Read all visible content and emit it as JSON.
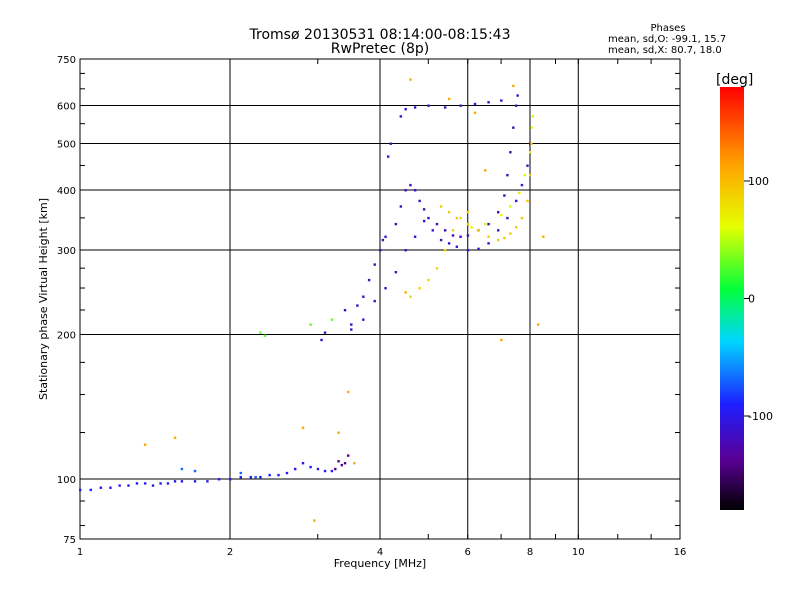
{
  "chart_data": {
    "type": "scatter",
    "title": "Tromsø 20130531 08:14:00-08:15:43",
    "subtitle": "RwPretec (8p)",
    "xlabel": "Frequency [MHz]",
    "ylabel": "Stationary phase Virtual Height [km]",
    "x_scale": "log",
    "y_scale": "log",
    "xlim": [
      1,
      16
    ],
    "ylim": [
      75,
      750
    ],
    "x_ticks": [
      1,
      2,
      4,
      6,
      8,
      10,
      16
    ],
    "x_tick_labels": [
      "1",
      "2",
      "4",
      "6",
      "8",
      "10",
      "16"
    ],
    "y_ticks": [
      75,
      100,
      200,
      300,
      400,
      500,
      600,
      750
    ],
    "y_tick_labels": [
      "75",
      "100",
      "200",
      "300",
      "400",
      "500",
      "600",
      "750"
    ],
    "grid": true,
    "phase_box": {
      "title": "Phases",
      "line_o": "mean, sd,O: -99.1, 15.7",
      "line_x": "mean, sd,X:  80.7, 18.0"
    },
    "colorbar": {
      "label": "[deg]",
      "range": [
        -180,
        180
      ],
      "ticks": [
        100,
        0,
        -100
      ],
      "tick_labels": [
        "100",
        "0",
        "-100"
      ]
    },
    "traces": [
      {
        "phase": -95,
        "points": [
          [
            1.0,
            95
          ],
          [
            1.05,
            95
          ],
          [
            1.1,
            96
          ],
          [
            1.15,
            96
          ],
          [
            1.2,
            97
          ],
          [
            1.25,
            97
          ],
          [
            1.3,
            98
          ],
          [
            1.35,
            98
          ],
          [
            1.4,
            97
          ],
          [
            1.45,
            98
          ],
          [
            1.5,
            98
          ],
          [
            1.55,
            99
          ],
          [
            1.6,
            99
          ],
          [
            1.7,
            99
          ],
          [
            1.8,
            99
          ],
          [
            1.9,
            100
          ],
          [
            2.0,
            100
          ],
          [
            2.1,
            101
          ],
          [
            2.2,
            101
          ],
          [
            2.3,
            101
          ],
          [
            2.4,
            102
          ],
          [
            2.5,
            102
          ],
          [
            2.6,
            103
          ],
          [
            2.7,
            105
          ],
          [
            2.8,
            108
          ],
          [
            2.9,
            106
          ],
          [
            3.0,
            105
          ],
          [
            3.1,
            104
          ],
          [
            3.2,
            104
          ]
        ]
      },
      {
        "phase": -140,
        "points": [
          [
            3.25,
            105
          ],
          [
            3.3,
            109
          ],
          [
            3.35,
            107
          ],
          [
            3.4,
            108
          ],
          [
            3.45,
            112
          ]
        ]
      },
      {
        "phase": -118,
        "points": [
          [
            3.05,
            195
          ],
          [
            3.1,
            202
          ],
          [
            3.4,
            225
          ],
          [
            3.5,
            210
          ],
          [
            3.6,
            230
          ],
          [
            3.7,
            240
          ],
          [
            3.8,
            260
          ],
          [
            3.9,
            280
          ],
          [
            4.0,
            300
          ],
          [
            4.05,
            315
          ],
          [
            4.1,
            320
          ]
        ]
      },
      {
        "phase": -112,
        "points": [
          [
            3.5,
            205
          ],
          [
            3.7,
            215
          ],
          [
            3.9,
            235
          ],
          [
            4.1,
            250
          ],
          [
            4.3,
            270
          ],
          [
            4.5,
            300
          ],
          [
            4.7,
            320
          ],
          [
            4.9,
            345
          ],
          [
            5.1,
            330
          ],
          [
            5.3,
            315
          ],
          [
            5.5,
            310
          ],
          [
            5.7,
            305
          ],
          [
            6.0,
            300
          ],
          [
            6.3,
            302
          ],
          [
            6.6,
            310
          ],
          [
            6.9,
            330
          ],
          [
            7.2,
            350
          ],
          [
            7.5,
            380
          ],
          [
            7.7,
            410
          ],
          [
            7.9,
            450
          ],
          [
            8.0,
            500
          ]
        ]
      },
      {
        "phase": -120,
        "points": [
          [
            4.3,
            340
          ],
          [
            4.4,
            370
          ],
          [
            4.5,
            400
          ],
          [
            4.6,
            410
          ],
          [
            4.7,
            400
          ],
          [
            4.8,
            380
          ],
          [
            4.9,
            365
          ],
          [
            5.0,
            350
          ],
          [
            5.2,
            340
          ],
          [
            5.4,
            330
          ],
          [
            5.6,
            322
          ],
          [
            5.8,
            320
          ],
          [
            6.0,
            322
          ],
          [
            6.3,
            330
          ],
          [
            6.6,
            340
          ],
          [
            6.9,
            360
          ],
          [
            7.1,
            390
          ],
          [
            7.2,
            430
          ],
          [
            7.3,
            480
          ],
          [
            7.4,
            540
          ],
          [
            7.5,
            600
          ],
          [
            7.55,
            630
          ]
        ]
      },
      {
        "phase": -112,
        "points": [
          [
            4.15,
            470
          ],
          [
            4.2,
            500
          ],
          [
            4.4,
            570
          ],
          [
            4.5,
            590
          ],
          [
            4.7,
            595
          ],
          [
            5.0,
            600
          ],
          [
            5.4,
            595
          ],
          [
            5.8,
            600
          ],
          [
            6.2,
            605
          ],
          [
            6.6,
            610
          ],
          [
            7.0,
            615
          ]
        ]
      },
      {
        "phase": 85,
        "points": [
          [
            4.6,
            240
          ],
          [
            4.8,
            250
          ],
          [
            5.0,
            260
          ],
          [
            5.2,
            275
          ],
          [
            5.4,
            300
          ],
          [
            5.6,
            330
          ],
          [
            5.8,
            350
          ],
          [
            6.0,
            360
          ]
        ]
      },
      {
        "phase": 90,
        "points": [
          [
            5.3,
            370
          ],
          [
            5.5,
            360
          ],
          [
            5.7,
            350
          ],
          [
            6.0,
            340
          ],
          [
            6.3,
            330
          ],
          [
            6.6,
            320
          ],
          [
            6.9,
            315
          ],
          [
            7.1,
            318
          ],
          [
            7.3,
            325
          ],
          [
            7.5,
            335
          ],
          [
            7.7,
            350
          ],
          [
            7.9,
            380
          ],
          [
            8.0,
            430
          ],
          [
            8.05,
            500
          ]
        ]
      },
      {
        "phase": 70,
        "points": [
          [
            6.1,
            335
          ],
          [
            6.5,
            340
          ],
          [
            7.0,
            355
          ],
          [
            7.3,
            370
          ],
          [
            7.6,
            395
          ],
          [
            7.8,
            430
          ],
          [
            8.0,
            480
          ],
          [
            8.05,
            540
          ],
          [
            8.1,
            570
          ]
        ]
      },
      {
        "phase": 110,
        "points": [
          [
            1.35,
            118
          ],
          [
            1.55,
            122
          ],
          [
            2.8,
            128
          ],
          [
            2.95,
            82
          ],
          [
            3.3,
            125
          ],
          [
            3.45,
            152
          ],
          [
            3.55,
            108
          ],
          [
            4.5,
            245
          ],
          [
            4.6,
            680
          ],
          [
            5.5,
            620
          ],
          [
            6.2,
            580
          ],
          [
            6.5,
            440
          ],
          [
            7.0,
            195
          ],
          [
            7.4,
            660
          ],
          [
            8.3,
            210
          ],
          [
            8.5,
            320
          ]
        ]
      },
      {
        "phase": 30,
        "points": [
          [
            2.3,
            202
          ],
          [
            2.35,
            199
          ],
          [
            2.9,
            210
          ],
          [
            3.2,
            215
          ]
        ]
      },
      {
        "phase": -70,
        "points": [
          [
            1.6,
            105
          ],
          [
            1.7,
            104
          ],
          [
            2.1,
            103
          ],
          [
            2.25,
            101
          ]
        ]
      }
    ]
  }
}
